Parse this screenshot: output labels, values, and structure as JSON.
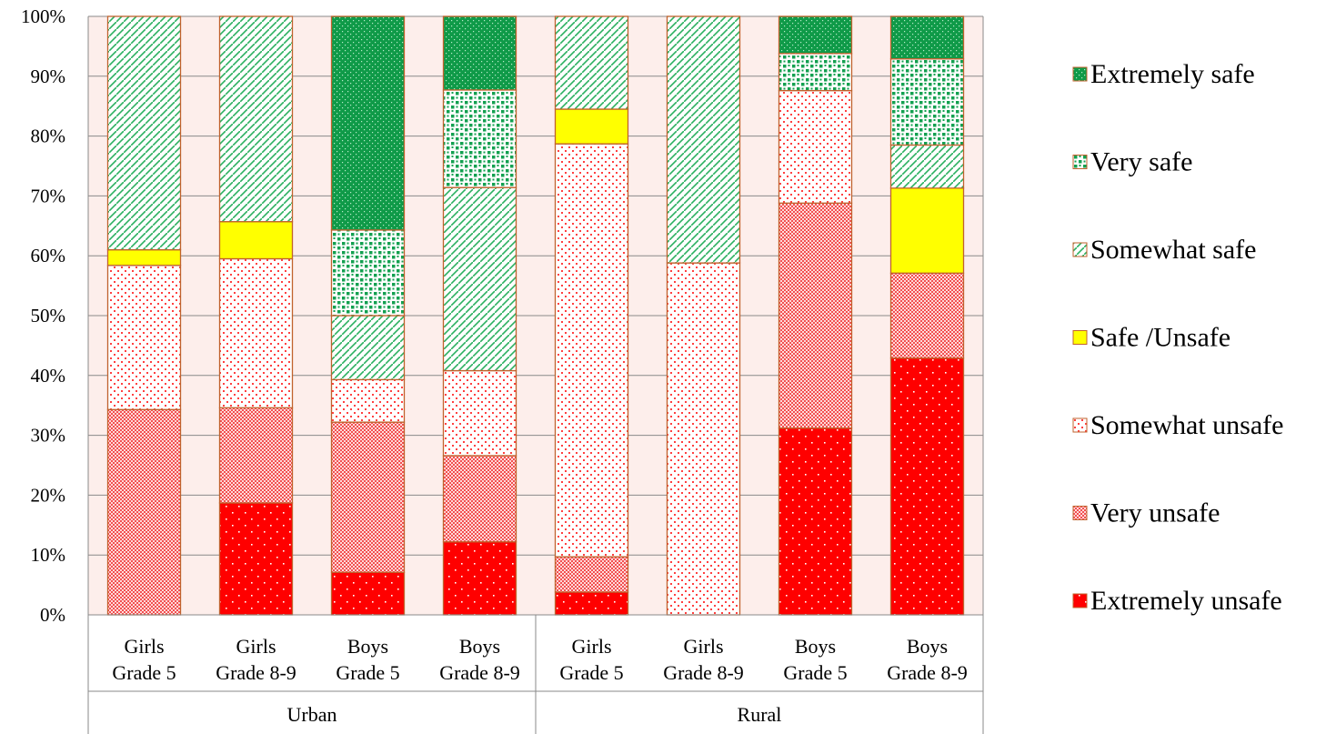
{
  "chart_data": {
    "type": "bar",
    "stacked": true,
    "percent": true,
    "ylim": [
      0,
      100
    ],
    "yticks": [
      "0%",
      "10%",
      "20%",
      "30%",
      "40%",
      "50%",
      "60%",
      "70%",
      "80%",
      "90%",
      "100%"
    ],
    "groups": [
      {
        "label": "Urban",
        "categories": [
          [
            "Girls",
            "Grade 5"
          ],
          [
            "Girls",
            "Grade 8-9"
          ],
          [
            "Boys",
            "Grade 5"
          ],
          [
            "Boys",
            "Grade 8-9"
          ]
        ]
      },
      {
        "label": "Rural",
        "categories": [
          [
            "Girls",
            "Grade 5"
          ],
          [
            "Girls",
            "Grade 8-9"
          ],
          [
            "Boys",
            "Grade 5"
          ],
          [
            "Boys",
            "Grade 8-9"
          ]
        ]
      }
    ],
    "series": [
      {
        "name": "Extremely unsafe",
        "color": "#ff0000",
        "pattern": "dots-white",
        "values": [
          0,
          18.7,
          7.1,
          12.2,
          3.8,
          0,
          31.2,
          42.9
        ]
      },
      {
        "name": "Very unsafe",
        "color": "#ff5a5a",
        "pattern": "dense-dots",
        "values": [
          34.3,
          15.9,
          25.1,
          14.4,
          5.9,
          0,
          37.6,
          14.2
        ]
      },
      {
        "name": "Somewhat unsafe",
        "color": "#ffffff",
        "pattern": "red-dots",
        "values": [
          24.1,
          24.9,
          7.1,
          14.2,
          69.0,
          58.8,
          18.8,
          0
        ]
      },
      {
        "name": "Safe /Unsafe",
        "color": "#ffff00",
        "pattern": "solid",
        "values": [
          2.6,
          6.2,
          0,
          0,
          5.8,
          0,
          0,
          14.2
        ]
      },
      {
        "name": "Somewhat safe",
        "color": "#ffffff",
        "pattern": "green-diagonal",
        "values": [
          39.0,
          34.3,
          10.7,
          30.6,
          15.5,
          41.2,
          0,
          7.2
        ]
      },
      {
        "name": "Very safe",
        "color": "#ffffff",
        "pattern": "green-blocks",
        "values": [
          0,
          0,
          14.3,
          16.3,
          0,
          0,
          6.2,
          14.4
        ]
      },
      {
        "name": "Extremely safe",
        "color": "#00a050",
        "pattern": "green-dotted",
        "values": [
          0,
          0,
          35.7,
          12.3,
          0,
          0,
          6.2,
          7.1
        ]
      }
    ],
    "legend": {
      "position": "right",
      "order": [
        "Extremely safe",
        "Very safe",
        "Somewhat safe",
        "Safe /Unsafe",
        "Somewhat unsafe",
        "Very unsafe",
        "Extremely unsafe"
      ]
    }
  }
}
